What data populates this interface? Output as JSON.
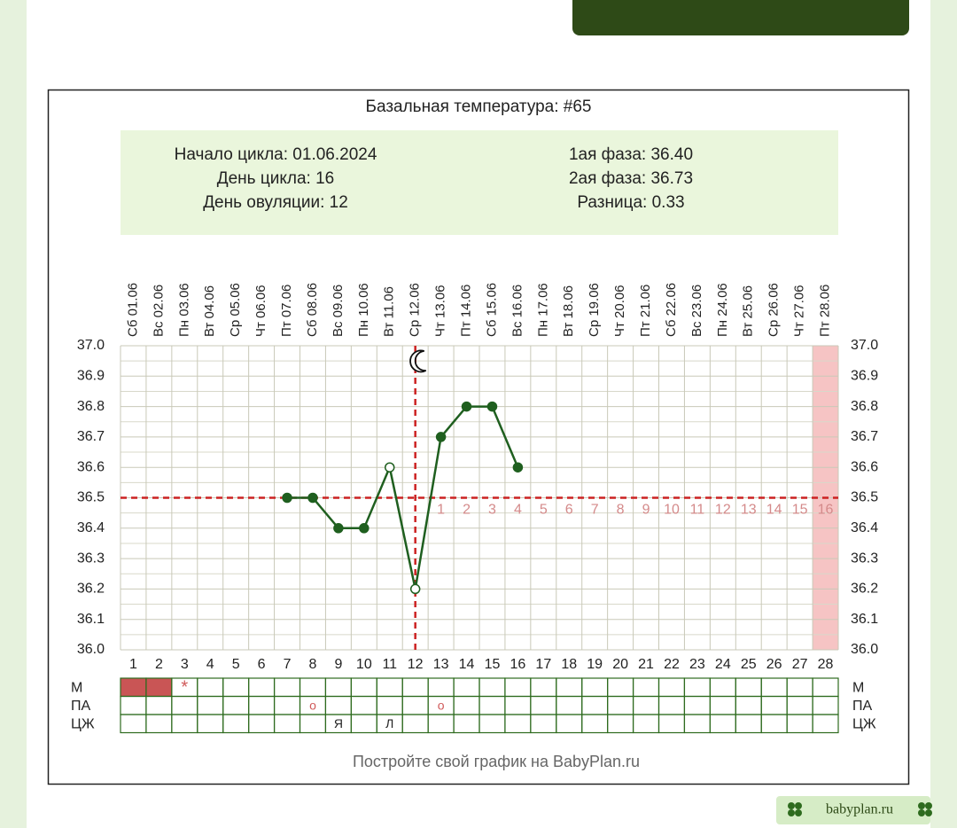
{
  "chart_data": {
    "type": "line",
    "title": "Базальная температура: #65",
    "info_left": [
      "Начало цикла: 01.06.2024",
      "День цикла: 16",
      "День овуляции: 12"
    ],
    "info_right": [
      "1ая фаза: 36.40",
      "2ая фаза: 36.73",
      "Разница: 0.33"
    ],
    "x": [
      1,
      2,
      3,
      4,
      5,
      6,
      7,
      8,
      9,
      10,
      11,
      12,
      13,
      14,
      15,
      16,
      17,
      18,
      19,
      20,
      21,
      22,
      23,
      24,
      25,
      26,
      27,
      28
    ],
    "date_labels": [
      "Сб 01.06",
      "Вс 02.06",
      "Пн 03.06",
      "Вт 04.06",
      "Ср 05.06",
      "Чт 06.06",
      "Пт 07.06",
      "Сб 08.06",
      "Вс 09.06",
      "Пн 10.06",
      "Вт 11.06",
      "Ср 12.06",
      "Чт 13.06",
      "Пт 14.06",
      "Сб 15.06",
      "Вс 16.06",
      "Пн 17.06",
      "Вт 18.06",
      "Ср 19.06",
      "Чт 20.06",
      "Пт 21.06",
      "Сб 22.06",
      "Вс 23.06",
      "Пн 24.06",
      "Вт 25.06",
      "Ср 26.06",
      "Чт 27.06",
      "Пт 28.06"
    ],
    "series": [
      {
        "color": "#1f5f1f",
        "values": [
          null,
          null,
          null,
          null,
          null,
          null,
          36.5,
          36.5,
          36.4,
          36.4,
          36.6,
          36.2,
          36.7,
          36.8,
          36.8,
          36.6,
          null,
          null,
          null,
          null,
          null,
          null,
          null,
          null,
          null,
          null,
          null,
          null
        ]
      }
    ],
    "open_point_days": [
      11,
      12
    ],
    "xlim": [
      0.5,
      28.5
    ],
    "ylim": [
      36.0,
      37.0
    ],
    "yticks": [
      {
        "value": 36.0,
        "label": "36.0"
      },
      36.1,
      36.2,
      36.3,
      36.4,
      36.5,
      36.6,
      36.7,
      36.8,
      36.9,
      {
        "value": 37.0,
        "label": "37.0"
      }
    ],
    "grid": true,
    "coverline": 36.5,
    "ovulation_day": 12,
    "line_color": "#cc2222",
    "post_ovulation_days": [
      1,
      2,
      3,
      4,
      5,
      6,
      7,
      8,
      9,
      10,
      11,
      12,
      13,
      14,
      15,
      16
    ],
    "highlight_day": 28,
    "highlight_color": "#f6c4c4",
    "rows": [
      {
        "name": "М",
        "filled_days": [
          1,
          2
        ],
        "cells": [
          null,
          null,
          "*",
          null,
          null,
          null,
          null,
          null,
          null,
          null,
          null,
          null,
          null,
          null,
          null,
          null,
          null,
          null,
          null,
          null,
          null,
          null,
          null,
          null,
          null,
          null,
          null,
          null
        ]
      },
      {
        "name": "ПА",
        "filled_days": [],
        "cells": [
          null,
          null,
          null,
          null,
          null,
          null,
          null,
          "o",
          null,
          null,
          null,
          null,
          "o",
          null,
          null,
          null,
          null,
          null,
          null,
          null,
          null,
          null,
          null,
          null,
          null,
          null,
          null,
          null
        ]
      },
      {
        "name": "ЦЖ",
        "filled_days": [],
        "cells": [
          null,
          null,
          null,
          null,
          null,
          null,
          null,
          null,
          "Я",
          null,
          "Л",
          null,
          null,
          null,
          null,
          null,
          null,
          null,
          null,
          null,
          null,
          null,
          null,
          null,
          null,
          null,
          null,
          null
        ]
      }
    ],
    "footer": "Постройте свой график на BabyPlan.ru"
  },
  "badge": "babyplan.ru"
}
